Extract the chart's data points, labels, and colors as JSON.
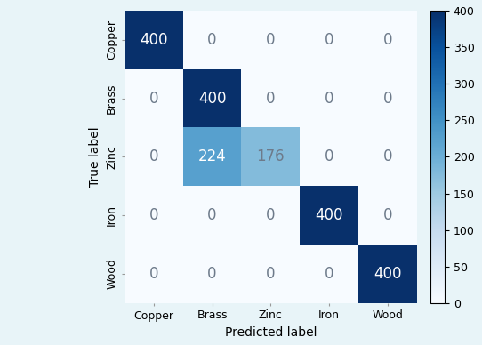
{
  "matrix": [
    [
      400,
      0,
      0,
      0,
      0
    ],
    [
      0,
      400,
      0,
      0,
      0
    ],
    [
      0,
      224,
      176,
      0,
      0
    ],
    [
      0,
      0,
      0,
      400,
      0
    ],
    [
      0,
      0,
      0,
      0,
      400
    ]
  ],
  "labels": [
    "Copper",
    "Brass",
    "Zinc",
    "Iron",
    "Wood"
  ],
  "xlabel": "Predicted label",
  "ylabel": "True label",
  "vmin": 0,
  "vmax": 400,
  "cmap": "Blues",
  "text_color_threshold": 200,
  "text_color_dark": "#ffffff",
  "text_color_light": "#6d7a8a",
  "figsize": [
    5.42,
    3.88
  ],
  "dpi": 100,
  "colorbar_ticks": [
    0,
    50,
    100,
    150,
    200,
    250,
    300,
    350,
    400
  ],
  "font_size_labels": 10,
  "font_size_ticks": 9,
  "font_size_values": 12,
  "bg_color": "#e8f4f8",
  "fig_bg_color": "#e8f4f8"
}
